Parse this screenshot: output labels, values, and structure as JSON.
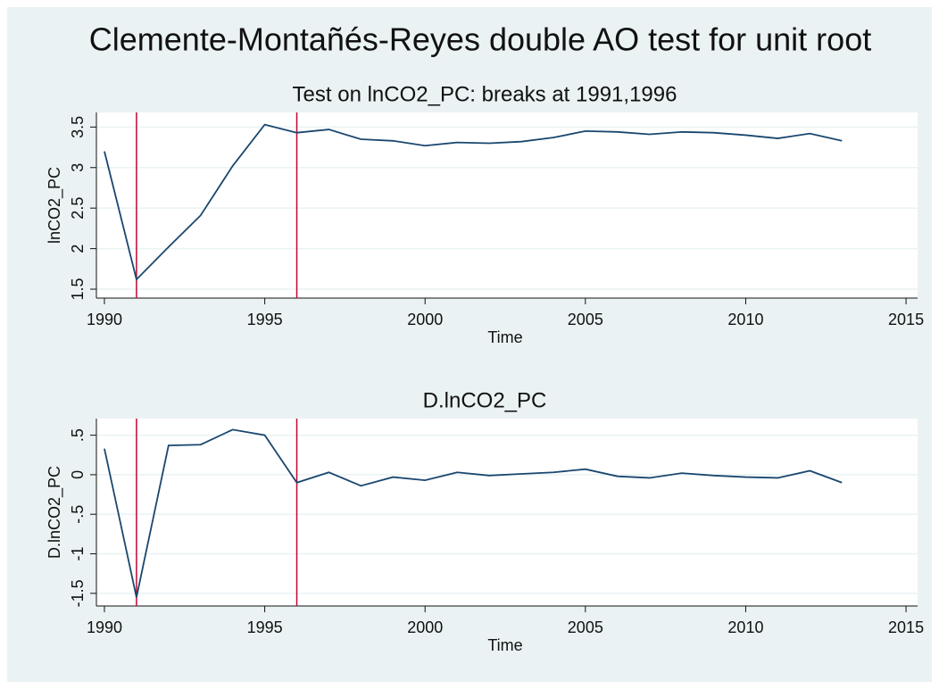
{
  "title": "Clemente-Montañés-Reyes double AO test for unit root",
  "chart_data": [
    {
      "type": "line",
      "title": "Test on lnCO2_PC: breaks at 1991,1996",
      "xlabel": "Time",
      "ylabel": "lnCO2_PC",
      "x": [
        1990,
        1991,
        1992,
        1993,
        1994,
        1995,
        1996,
        1997,
        1998,
        1999,
        2000,
        2001,
        2002,
        2003,
        2004,
        2005,
        2006,
        2007,
        2008,
        2009,
        2010,
        2011,
        2012,
        2013
      ],
      "series": [
        {
          "name": "lnCO2_PC",
          "color": "#1a476f",
          "values": [
            3.2,
            1.62,
            2.02,
            2.41,
            3.02,
            3.53,
            3.43,
            3.47,
            3.35,
            3.33,
            3.27,
            3.31,
            3.3,
            3.32,
            3.37,
            3.45,
            3.44,
            3.41,
            3.44,
            3.43,
            3.4,
            3.36,
            3.42,
            3.33
          ]
        }
      ],
      "vlines": [
        1991,
        1996
      ],
      "vline_color": "#c10534",
      "xlim": [
        1989.75,
        2015.36
      ],
      "xticks": [
        1990,
        1995,
        2000,
        2005,
        2010,
        2015
      ],
      "ylim": [
        1.39,
        3.68
      ],
      "yticks": [
        1.5,
        2,
        2.5,
        3,
        3.5
      ],
      "grid": true
    },
    {
      "type": "line",
      "title": "D.lnCO2_PC",
      "xlabel": "Time",
      "ylabel": "D.lnCO2_PC",
      "x": [
        1990,
        1991,
        1992,
        1993,
        1994,
        1995,
        1996,
        1997,
        1998,
        1999,
        2000,
        2001,
        2002,
        2003,
        2004,
        2005,
        2006,
        2007,
        2008,
        2009,
        2010,
        2011,
        2012,
        2013
      ],
      "series": [
        {
          "name": "D.lnCO2_PC",
          "color": "#1a476f",
          "values": [
            0.33,
            -1.55,
            0.37,
            0.38,
            0.57,
            0.5,
            -0.1,
            0.03,
            -0.14,
            -0.03,
            -0.07,
            0.03,
            -0.01,
            0.01,
            0.03,
            0.07,
            -0.02,
            -0.04,
            0.02,
            -0.01,
            -0.03,
            -0.04,
            0.05,
            -0.1
          ]
        }
      ],
      "vlines": [
        1991,
        1996
      ],
      "vline_color": "#c10534",
      "xlim": [
        1989.75,
        2015.36
      ],
      "xticks": [
        1990,
        1995,
        2000,
        2005,
        2010,
        2015
      ],
      "ylim": [
        -1.66,
        0.71
      ],
      "yticks": [
        {
          "value": -1.5,
          "label": "-1.5"
        },
        -1,
        {
          "value": -0.5,
          "label": "-.5"
        },
        0,
        {
          "value": 0.5,
          "label": ".5"
        }
      ],
      "grid": true
    }
  ]
}
